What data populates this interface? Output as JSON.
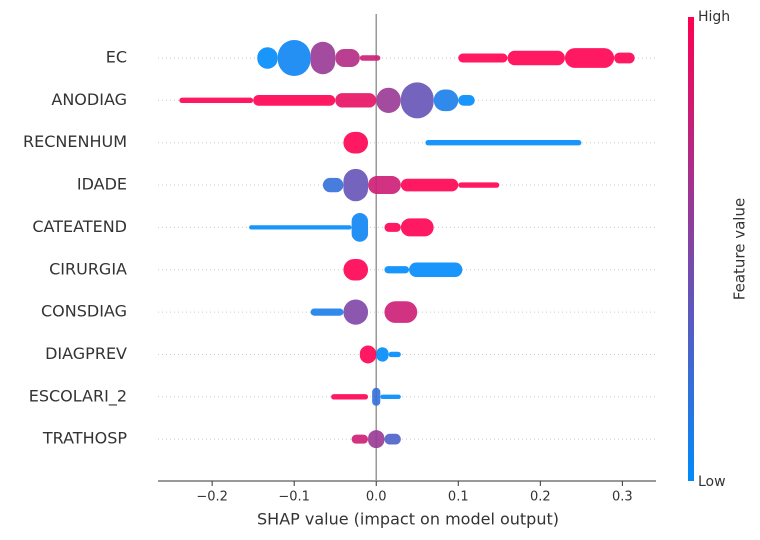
{
  "chart_data": {
    "type": "beeswarm",
    "xlabel": "SHAP value (impact on model output)",
    "xlim": [
      -0.266,
      0.341
    ],
    "xticks": [
      {
        "value": -0.2,
        "label": "−0.2"
      },
      {
        "value": -0.1,
        "label": "−0.1"
      },
      {
        "value": 0,
        "label": "0.0"
      },
      0.1,
      0.2,
      0.3
    ],
    "colormap": [
      "#008bfb",
      "#ff0051"
    ],
    "colorbar": {
      "label": "Feature value",
      "high": "High",
      "low": "Low"
    },
    "features": [
      {
        "name": "EC",
        "segments": [
          [
            -0.145,
            -0.12,
            0,
            0.6
          ],
          [
            -0.12,
            -0.08,
            0.05,
            1
          ],
          [
            -0.08,
            -0.05,
            0.6,
            0.9
          ],
          [
            -0.05,
            -0.02,
            0.7,
            0.5
          ],
          [
            -0.02,
            0.005,
            0.8,
            0.15
          ],
          [
            0.1,
            0.16,
            1,
            0.25
          ],
          [
            0.16,
            0.23,
            1,
            0.4
          ],
          [
            0.23,
            0.29,
            1,
            0.55
          ],
          [
            0.29,
            0.315,
            1,
            0.3
          ]
        ]
      },
      {
        "name": "ANODIAG",
        "segments": [
          [
            -0.24,
            -0.15,
            1,
            0.15
          ],
          [
            -0.15,
            -0.05,
            1,
            0.3
          ],
          [
            -0.05,
            0.0,
            0.9,
            0.4
          ],
          [
            0.0,
            0.03,
            0.6,
            0.7
          ],
          [
            0.03,
            0.07,
            0.4,
            1
          ],
          [
            0.07,
            0.1,
            0.1,
            0.6
          ],
          [
            0.1,
            0.12,
            0,
            0.3
          ]
        ]
      },
      {
        "name": "RECNENHUM",
        "segments": [
          [
            -0.04,
            -0.01,
            1,
            0.6
          ],
          [
            0.06,
            0.25,
            0,
            0.15
          ]
        ]
      },
      {
        "name": "IDADE",
        "segments": [
          [
            -0.065,
            -0.04,
            0.2,
            0.4
          ],
          [
            -0.04,
            -0.01,
            0.4,
            0.9
          ],
          [
            -0.01,
            0.03,
            0.8,
            0.5
          ],
          [
            0.03,
            0.1,
            1,
            0.35
          ],
          [
            0.1,
            0.15,
            1,
            0.15
          ]
        ]
      },
      {
        "name": "CATEATEND",
        "segments": [
          [
            -0.155,
            -0.03,
            0,
            0.12
          ],
          [
            -0.03,
            -0.01,
            0.05,
            0.8
          ],
          [
            0.01,
            0.03,
            1,
            0.25
          ],
          [
            0.03,
            0.07,
            1,
            0.5
          ]
        ]
      },
      {
        "name": "CIRURGIA",
        "segments": [
          [
            -0.04,
            -0.01,
            1,
            0.6
          ],
          [
            0.01,
            0.04,
            0,
            0.2
          ],
          [
            0.04,
            0.105,
            0,
            0.4
          ]
        ]
      },
      {
        "name": "CONSDIAG",
        "segments": [
          [
            -0.08,
            -0.04,
            0.1,
            0.2
          ],
          [
            -0.04,
            -0.01,
            0.5,
            0.7
          ],
          [
            0.01,
            0.05,
            0.8,
            0.6
          ]
        ]
      },
      {
        "name": "DIAGPREV",
        "segments": [
          [
            -0.02,
            0.0,
            1,
            0.5
          ],
          [
            0.0,
            0.015,
            0,
            0.4
          ],
          [
            0.015,
            0.03,
            0,
            0.15
          ]
        ]
      },
      {
        "name": "ESCOLARI_2",
        "segments": [
          [
            -0.055,
            -0.01,
            1,
            0.15
          ],
          [
            -0.005,
            0.005,
            0.2,
            0.5
          ],
          [
            0.005,
            0.03,
            0,
            0.12
          ]
        ]
      },
      {
        "name": "TRATHOSP",
        "segments": [
          [
            -0.03,
            -0.01,
            0.8,
            0.25
          ],
          [
            -0.01,
            0.01,
            0.6,
            0.5
          ],
          [
            0.01,
            0.03,
            0.3,
            0.3
          ]
        ]
      }
    ]
  }
}
